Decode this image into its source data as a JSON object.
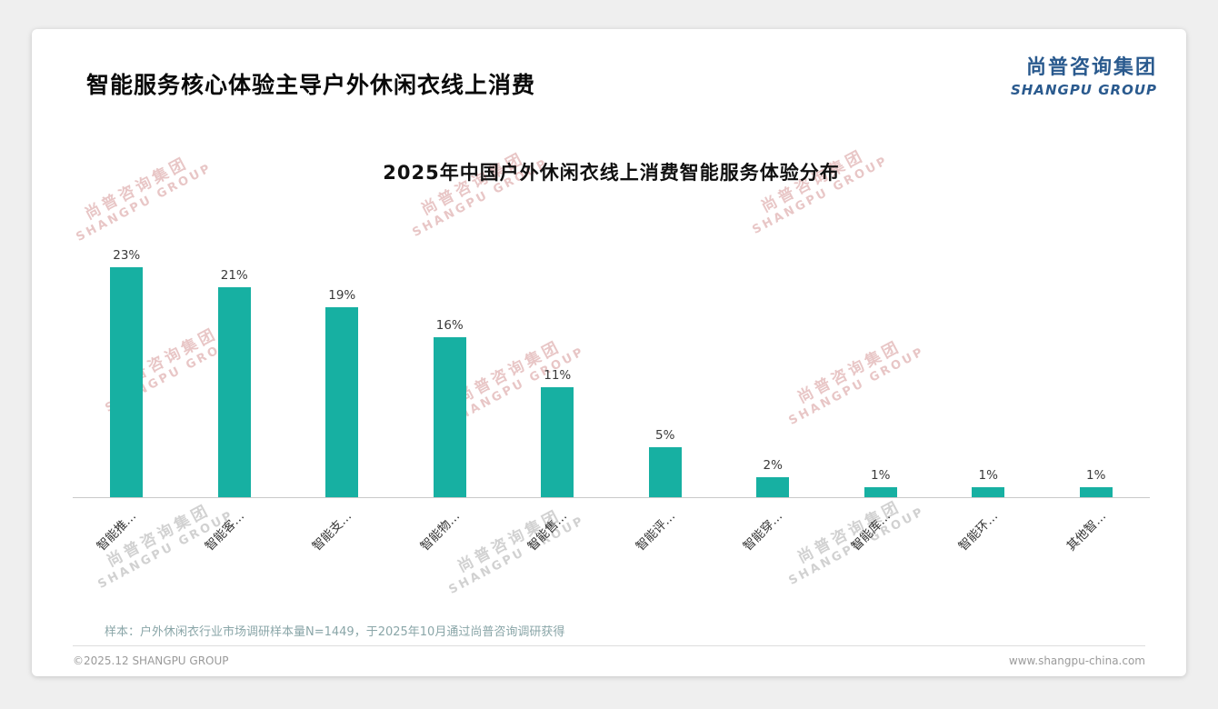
{
  "page": {
    "title": "智能服务核心体验主导户外休闲衣线上消费",
    "logo": {
      "cn": "尚普咨询集团",
      "en": "SHANGPU GROUP"
    },
    "note": "样本：户外休闲衣行业市场调研样本量N=1449，于2025年10月通过尚普咨询调研获得",
    "footer_left": "©2025.12 SHANGPU GROUP",
    "footer_right": "www.shangpu-china.com"
  },
  "watermark": {
    "cn": "尚普咨询集团",
    "en": "SHANGPU GROUP"
  },
  "colors": {
    "accent": "#17B0A2",
    "brand_blue": "#2A5A8E",
    "watermark_pink": "#CD8282",
    "watermark_gray": "#9A9A9A"
  },
  "chart_data": {
    "type": "bar",
    "title": "2025年中国户外休闲衣线上消费智能服务体验分布",
    "categories": [
      "智能推…",
      "智能客…",
      "智能支…",
      "智能物…",
      "智能售…",
      "智能评…",
      "智能穿…",
      "智能库…",
      "智能环…",
      "其他智…"
    ],
    "values": [
      23,
      21,
      19,
      16,
      11,
      5,
      2,
      1,
      1,
      1
    ],
    "value_labels": [
      "23%",
      "21%",
      "19%",
      "16%",
      "11%",
      "5%",
      "2%",
      "1%",
      "1%",
      "1%"
    ],
    "bar_color": "#17B0A2",
    "xlabel": "",
    "ylabel": "",
    "ylim": [
      0,
      25
    ],
    "grid": false,
    "legend": "none"
  }
}
